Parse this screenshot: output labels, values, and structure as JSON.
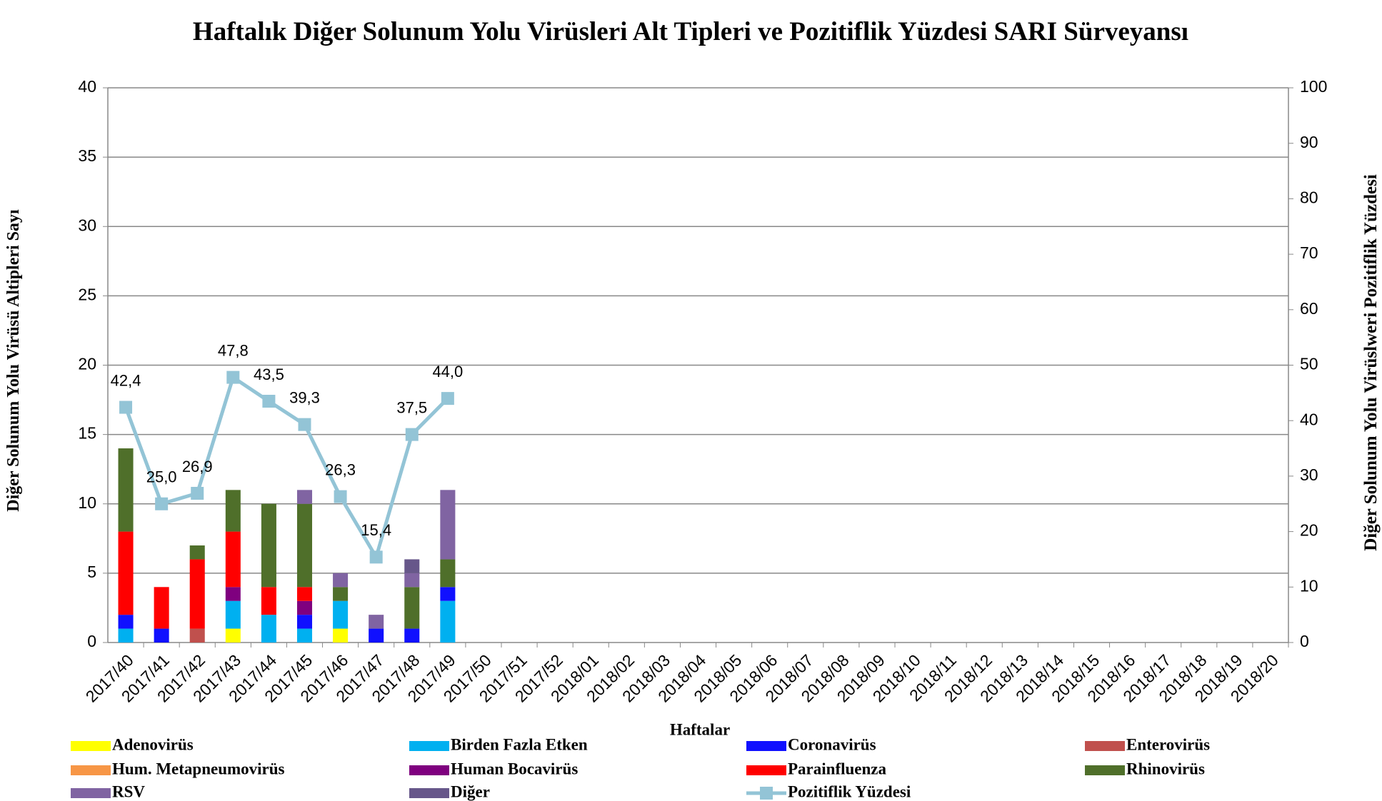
{
  "chart_data": {
    "type": "bar",
    "stacked": true,
    "title": "Haftalık Diğer Solunum Yolu Virüsleri Alt Tipleri ve Pozitiflik Yüzdesi SARI Sürveyansı",
    "ylabel": "Diğer Solunum Yolu Virüsü Altipleri Sayı",
    "y2label": "Diğer Solunum Yolu Virüslweri Pozitiflik Yüzdesi",
    "xlabel": "Haftalar",
    "categories": [
      "2017/40",
      "2017/41",
      "2017/42",
      "2017/43",
      "2017/44",
      "2017/45",
      "2017/46",
      "2017/47",
      "2017/48",
      "2017/49",
      "2017/50",
      "2017/51",
      "2017/52",
      "2018/01",
      "2018/02",
      "2018/03",
      "2018/04",
      "2018/05",
      "2018/06",
      "2018/07",
      "2018/08",
      "2018/09",
      "2018/10",
      "2018/11",
      "2018/12",
      "2018/13",
      "2018/14",
      "2018/15",
      "2018/16",
      "2018/17",
      "2018/18",
      "2018/19",
      "2018/20"
    ],
    "ylim": [
      0,
      40
    ],
    "yticks": [
      0,
      5,
      10,
      15,
      20,
      25,
      30,
      35,
      40
    ],
    "y2lim": [
      0,
      100
    ],
    "y2ticks": [
      0,
      10,
      20,
      30,
      40,
      50,
      60,
      70,
      80,
      90,
      100
    ],
    "grid": true,
    "series": [
      {
        "name": "Adenovirüs",
        "color": "#ffff00",
        "values": [
          0,
          0,
          0,
          1,
          0,
          0,
          1,
          0,
          0,
          0,
          null,
          null,
          null,
          null,
          null,
          null,
          null,
          null,
          null,
          null,
          null,
          null,
          null,
          null,
          null,
          null,
          null,
          null,
          null,
          null,
          null,
          null,
          null
        ]
      },
      {
        "name": "Birden Fazla Etken",
        "color": "#00b0f0",
        "values": [
          1,
          0,
          0,
          2,
          2,
          1,
          2,
          0,
          0,
          3,
          null,
          null,
          null,
          null,
          null,
          null,
          null,
          null,
          null,
          null,
          null,
          null,
          null,
          null,
          null,
          null,
          null,
          null,
          null,
          null,
          null,
          null,
          null
        ]
      },
      {
        "name": "Coronavirüs",
        "color": "#1010ff",
        "values": [
          1,
          1,
          0,
          0,
          0,
          1,
          0,
          1,
          1,
          1,
          null,
          null,
          null,
          null,
          null,
          null,
          null,
          null,
          null,
          null,
          null,
          null,
          null,
          null,
          null,
          null,
          null,
          null,
          null,
          null,
          null,
          null,
          null
        ]
      },
      {
        "name": "Enterovirüs",
        "color": "#c0504d",
        "values": [
          0,
          0,
          1,
          0,
          0,
          0,
          0,
          0,
          0,
          0,
          null,
          null,
          null,
          null,
          null,
          null,
          null,
          null,
          null,
          null,
          null,
          null,
          null,
          null,
          null,
          null,
          null,
          null,
          null,
          null,
          null,
          null,
          null
        ]
      },
      {
        "name": "Hum. Metapneumovirüs",
        "color": "#f79646",
        "values": [
          0,
          0,
          0,
          0,
          0,
          0,
          0,
          0,
          0,
          0,
          null,
          null,
          null,
          null,
          null,
          null,
          null,
          null,
          null,
          null,
          null,
          null,
          null,
          null,
          null,
          null,
          null,
          null,
          null,
          null,
          null,
          null,
          null
        ]
      },
      {
        "name": "Human Bocavirüs",
        "color": "#7f007f",
        "values": [
          0,
          0,
          0,
          1,
          0,
          1,
          0,
          0,
          0,
          0,
          null,
          null,
          null,
          null,
          null,
          null,
          null,
          null,
          null,
          null,
          null,
          null,
          null,
          null,
          null,
          null,
          null,
          null,
          null,
          null,
          null,
          null,
          null
        ]
      },
      {
        "name": "Parainfluenza",
        "color": "#ff0000",
        "values": [
          6,
          3,
          5,
          4,
          2,
          1,
          0,
          0,
          0,
          0,
          null,
          null,
          null,
          null,
          null,
          null,
          null,
          null,
          null,
          null,
          null,
          null,
          null,
          null,
          null,
          null,
          null,
          null,
          null,
          null,
          null,
          null,
          null
        ]
      },
      {
        "name": "Rhinovirüs",
        "color": "#4f6f2a",
        "values": [
          6,
          0,
          1,
          3,
          6,
          6,
          1,
          0,
          3,
          2,
          null,
          null,
          null,
          null,
          null,
          null,
          null,
          null,
          null,
          null,
          null,
          null,
          null,
          null,
          null,
          null,
          null,
          null,
          null,
          null,
          null,
          null,
          null
        ]
      },
      {
        "name": "RSV",
        "color": "#8064a2",
        "values": [
          0,
          0,
          0,
          0,
          0,
          1,
          1,
          1,
          1,
          5,
          null,
          null,
          null,
          null,
          null,
          null,
          null,
          null,
          null,
          null,
          null,
          null,
          null,
          null,
          null,
          null,
          null,
          null,
          null,
          null,
          null,
          null,
          null
        ]
      },
      {
        "name": "Diğer",
        "color": "#67578a",
        "values": [
          0,
          0,
          0,
          0,
          0,
          0,
          0,
          0,
          1,
          0,
          null,
          null,
          null,
          null,
          null,
          null,
          null,
          null,
          null,
          null,
          null,
          null,
          null,
          null,
          null,
          null,
          null,
          null,
          null,
          null,
          null,
          null,
          null
        ]
      },
      {
        "name": "Pozitiflik Yüzdesi",
        "color": "#93c4d6",
        "type": "line",
        "axis": "y2",
        "values": [
          42.4,
          25.0,
          26.9,
          47.8,
          43.5,
          39.3,
          26.3,
          15.4,
          37.5,
          44.0,
          null,
          null,
          null,
          null,
          null,
          null,
          null,
          null,
          null,
          null,
          null,
          null,
          null,
          null,
          null,
          null,
          null,
          null,
          null,
          null,
          null,
          null,
          null
        ],
        "value_labels": [
          "42,4",
          "25,0",
          "26,9",
          "47,8",
          "43,5",
          "39,3",
          "26,3",
          "15,4",
          "37,5",
          "44,0",
          null,
          null,
          null,
          null,
          null,
          null,
          null,
          null,
          null,
          null,
          null,
          null,
          null,
          null,
          null,
          null,
          null,
          null,
          null,
          null,
          null,
          null,
          null
        ]
      }
    ]
  }
}
